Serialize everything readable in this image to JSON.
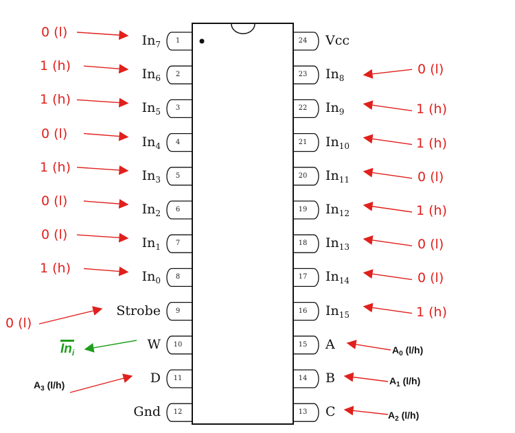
{
  "chip": {
    "left_pins": [
      {
        "num": "1",
        "name": "In",
        "sub": "7",
        "signal": "0 (l)"
      },
      {
        "num": "2",
        "name": "In",
        "sub": "6",
        "signal": "1 (h)"
      },
      {
        "num": "3",
        "name": "In",
        "sub": "5",
        "signal": "1 (h)"
      },
      {
        "num": "4",
        "name": "In",
        "sub": "4",
        "signal": "0 (l)"
      },
      {
        "num": "5",
        "name": "In",
        "sub": "3",
        "signal": "1 (h)"
      },
      {
        "num": "6",
        "name": "In",
        "sub": "2",
        "signal": "0 (l)"
      },
      {
        "num": "7",
        "name": "In",
        "sub": "1",
        "signal": "0 (l)"
      },
      {
        "num": "8",
        "name": "In",
        "sub": "0",
        "signal": "1 (h)"
      },
      {
        "num": "9",
        "name": "Strobe",
        "sub": "",
        "signal": "0 (l)"
      },
      {
        "num": "10",
        "name": "W",
        "sub": "",
        "signal": ""
      },
      {
        "num": "11",
        "name": "D",
        "sub": "",
        "signal": ""
      },
      {
        "num": "12",
        "name": "Gnd",
        "sub": "",
        "signal": ""
      }
    ],
    "right_pins": [
      {
        "num": "24",
        "name": "Vcc",
        "sub": "",
        "signal": ""
      },
      {
        "num": "23",
        "name": "In",
        "sub": "8",
        "signal": "0 (l)"
      },
      {
        "num": "22",
        "name": "In",
        "sub": "9",
        "signal": "1 (h)"
      },
      {
        "num": "21",
        "name": "In",
        "sub": "10",
        "signal": "1 (h)"
      },
      {
        "num": "20",
        "name": "In",
        "sub": "11",
        "signal": "0 (l)"
      },
      {
        "num": "19",
        "name": "In",
        "sub": "12",
        "signal": "1 (h)"
      },
      {
        "num": "18",
        "name": "In",
        "sub": "13",
        "signal": "0 (l)"
      },
      {
        "num": "17",
        "name": "In",
        "sub": "14",
        "signal": "0 (l)"
      },
      {
        "num": "16",
        "name": "In",
        "sub": "15",
        "signal": "1 (h)"
      },
      {
        "num": "15",
        "name": "A",
        "sub": "",
        "signal": ""
      },
      {
        "num": "14",
        "name": "B",
        "sub": "",
        "signal": ""
      },
      {
        "num": "13",
        "name": "C",
        "sub": "",
        "signal": ""
      }
    ]
  },
  "address_inputs": {
    "a0": {
      "letter": "A",
      "sub": "0",
      "suffix": " (l/h)"
    },
    "a1": {
      "letter": "A",
      "sub": "1",
      "suffix": " (l/h)"
    },
    "a2": {
      "letter": "A",
      "sub": "2",
      "suffix": " (l/h)"
    },
    "a3": {
      "letter": "A",
      "sub": "3",
      "suffix": " (l/h)"
    }
  },
  "output": {
    "text": "In",
    "sub": "i"
  },
  "colors": {
    "input_arrow": "#e0201c",
    "output_arrow": "#1e9e1e",
    "chip_outline": "#111111"
  }
}
